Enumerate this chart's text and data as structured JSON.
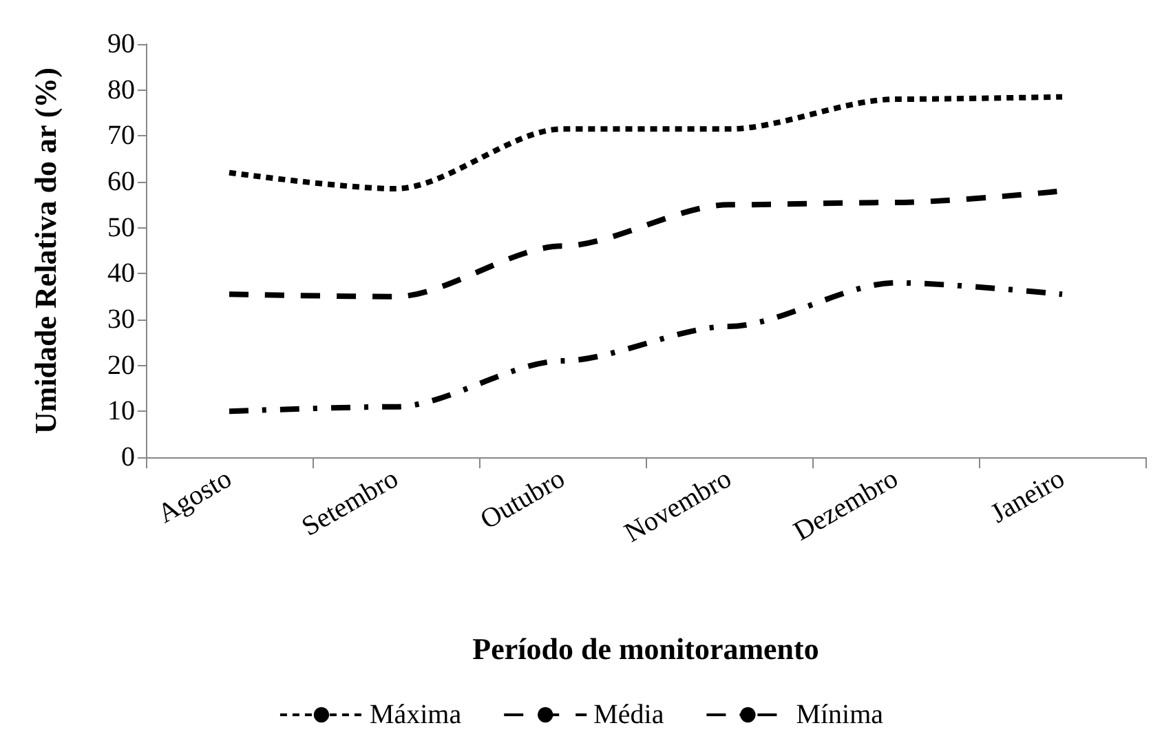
{
  "chart_data": {
    "type": "line",
    "xlabel": "Período de monitoramento",
    "ylabel": "Umidade Relativa do ar (%)",
    "categories": [
      "Agosto",
      "Setembro",
      "Outubro",
      "Novembro",
      "Dezembro",
      "Janeiro"
    ],
    "series": [
      {
        "name": "Máxima",
        "color": "#000000",
        "line_style": "dotted",
        "values": [
          62,
          58.5,
          71.5,
          71.5,
          78,
          78.5
        ]
      },
      {
        "name": "Média",
        "color": "#000000",
        "line_style": "dashed",
        "values": [
          35.5,
          35,
          46,
          55,
          55.5,
          58
        ]
      },
      {
        "name": "Mínima",
        "color": "#000000",
        "line_style": "dashdot",
        "values": [
          10,
          11,
          21,
          28.5,
          38,
          35.5
        ]
      }
    ],
    "ylim": [
      0,
      90
    ],
    "yticks": [
      0,
      10,
      20,
      30,
      40,
      50,
      60,
      70,
      80,
      90
    ],
    "grid": false,
    "legend": "bottom",
    "marker": "none"
  }
}
